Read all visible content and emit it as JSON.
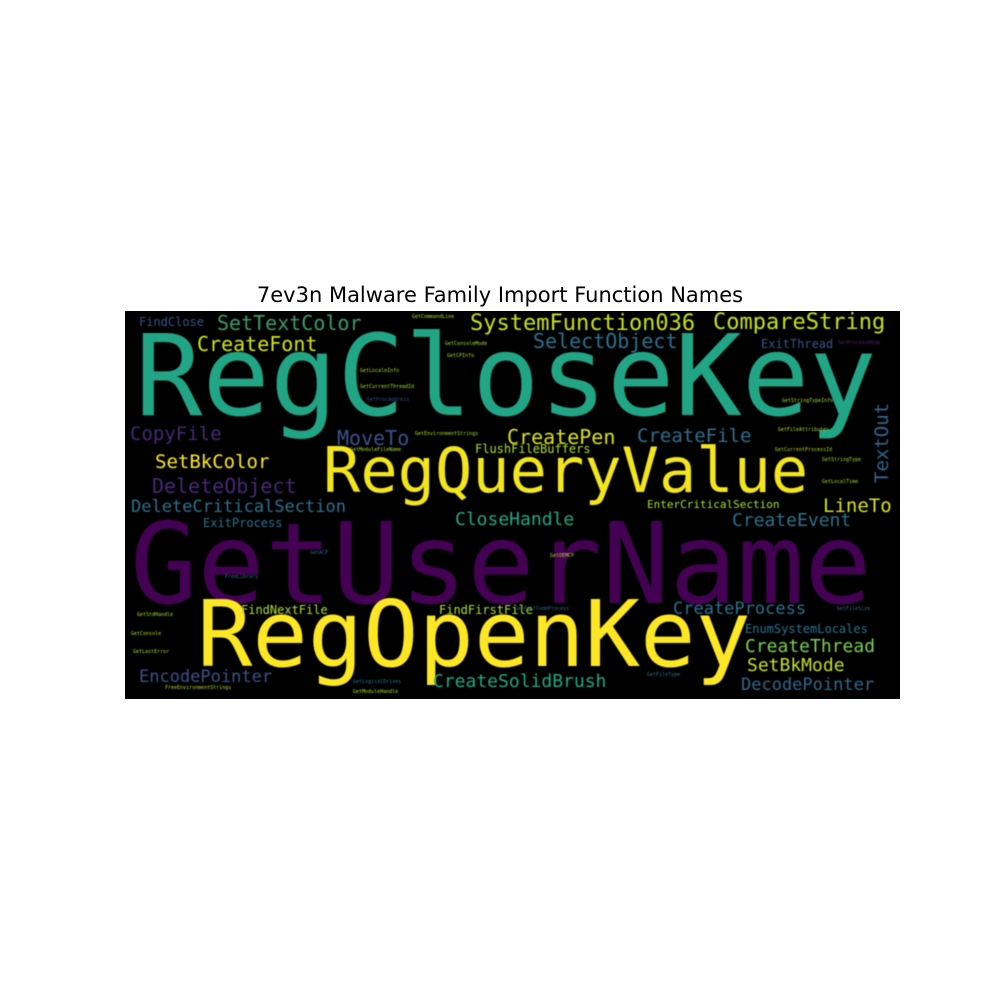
{
  "title": "7ev3n Malware Family Import Function Names",
  "palette": {
    "background": "#000000",
    "purple": "#440154",
    "indigo": "#472d7b",
    "blue": "#3b528b",
    "teal": "#2c728e",
    "cyan": "#21918c",
    "green": "#28ae80",
    "lime": "#5ec962",
    "yellowgreen": "#addc30",
    "yellow": "#fde725"
  },
  "words": [
    {
      "text": "GetUserName",
      "weight": 1.0,
      "color": "#440154"
    },
    {
      "text": "RegCloseKey",
      "weight": 0.9,
      "color": "#21a585"
    },
    {
      "text": "RegOpenKey",
      "weight": 0.8,
      "color": "#fde725"
    },
    {
      "text": "RegQueryValue",
      "weight": 0.62,
      "color": "#f2e51d"
    },
    {
      "text": "SystemFunction036",
      "weight": 0.25,
      "color": "#c8e020"
    },
    {
      "text": "CompareString",
      "weight": 0.24,
      "color": "#c8e020"
    },
    {
      "text": "SetTextColor",
      "weight": 0.23,
      "color": "#3e9a6a"
    },
    {
      "text": "CreateFont",
      "weight": 0.23,
      "color": "#d2e21b"
    },
    {
      "text": "SelectObject",
      "weight": 0.22,
      "color": "#2c728e"
    },
    {
      "text": "CopyFile",
      "weight": 0.22,
      "color": "#482878"
    },
    {
      "text": "MoveTo",
      "weight": 0.22,
      "color": "#3b528b"
    },
    {
      "text": "CreatePen",
      "weight": 0.22,
      "color": "#d8e219"
    },
    {
      "text": "CreateFile",
      "weight": 0.22,
      "color": "#2c728e"
    },
    {
      "text": "TextOut",
      "weight": 0.22,
      "color": "#31688e"
    },
    {
      "text": "SetBkColor",
      "weight": 0.22,
      "color": "#fde725"
    },
    {
      "text": "DeleteObject",
      "weight": 0.22,
      "color": "#482878"
    },
    {
      "text": "DeleteCriticalSection",
      "weight": 0.21,
      "color": "#2c728e"
    },
    {
      "text": "LineTo",
      "weight": 0.21,
      "color": "#d8e219"
    },
    {
      "text": "CloseHandle",
      "weight": 0.21,
      "color": "#22a884"
    },
    {
      "text": "CreateEvent",
      "weight": 0.21,
      "color": "#2c728e"
    },
    {
      "text": "CreateProcess",
      "weight": 0.2,
      "color": "#2c728e"
    },
    {
      "text": "CreateThread",
      "weight": 0.2,
      "color": "#7ad151"
    },
    {
      "text": "SetBkMode",
      "weight": 0.2,
      "color": "#c8e020"
    },
    {
      "text": "EncodePointer",
      "weight": 0.2,
      "color": "#3b528b"
    },
    {
      "text": "CreateSolidBrush",
      "weight": 0.2,
      "color": "#22a884"
    },
    {
      "text": "DecodePointer",
      "weight": 0.2,
      "color": "#31688e"
    },
    {
      "text": "FindClose",
      "weight": 0.1,
      "color": "#3b528b"
    },
    {
      "text": "ExitThread",
      "weight": 0.1,
      "color": "#3b528b"
    },
    {
      "text": "FlushFileBuffers",
      "weight": 0.1,
      "color": "#addc30"
    },
    {
      "text": "ExitProcess",
      "weight": 0.1,
      "color": "#2c728e"
    },
    {
      "text": "EnterCriticalSection",
      "weight": 0.1,
      "color": "#addc30"
    },
    {
      "text": "FindNextFile",
      "weight": 0.1,
      "color": "#addc30"
    },
    {
      "text": "FindFirstFile",
      "weight": 0.1,
      "color": "#addc30"
    },
    {
      "text": "EnumSystemLocales",
      "weight": 0.1,
      "color": "#2c728e"
    },
    {
      "text": "GetCommandLine",
      "weight": 0.04,
      "color": "#addc30"
    },
    {
      "text": "GetConsoleMode",
      "weight": 0.04,
      "color": "#addc30"
    },
    {
      "text": "GetCPInfo",
      "weight": 0.04,
      "color": "#addc30"
    },
    {
      "text": "GetLocaleInfo",
      "weight": 0.04,
      "color": "#addc30"
    },
    {
      "text": "GetCurrentThreadId",
      "weight": 0.04,
      "color": "#addc30"
    },
    {
      "text": "GetProcAddress",
      "weight": 0.04,
      "color": "#3b528b"
    },
    {
      "text": "GetStringTypeInfo",
      "weight": 0.04,
      "color": "#addc30"
    },
    {
      "text": "GetProcessHeap",
      "weight": 0.04,
      "color": "#482878"
    },
    {
      "text": "GetEnvironmentStrings",
      "weight": 0.04,
      "color": "#addc30"
    },
    {
      "text": "GetFileAttributes",
      "weight": 0.04,
      "color": "#addc30"
    },
    {
      "text": "GetModuleFileName",
      "weight": 0.04,
      "color": "#addc30"
    },
    {
      "text": "GetCurrentProcessId",
      "weight": 0.04,
      "color": "#addc30"
    },
    {
      "text": "GetStringType",
      "weight": 0.04,
      "color": "#addc30"
    },
    {
      "text": "GetLocalTime",
      "weight": 0.04,
      "color": "#addc30"
    },
    {
      "text": "FreeLibrary",
      "weight": 0.04,
      "color": "#2c728e"
    },
    {
      "text": "GetACP",
      "weight": 0.04,
      "color": "#2c728e"
    },
    {
      "text": "GetOEMCP",
      "weight": 0.04,
      "color": "#addc30"
    },
    {
      "text": "GetStdHandle",
      "weight": 0.04,
      "color": "#addc30"
    },
    {
      "text": "GetExitCodeProcess",
      "weight": 0.04,
      "color": "#2c728e"
    },
    {
      "text": "GetFileSize",
      "weight": 0.04,
      "color": "#2c728e"
    },
    {
      "text": "GetConsole",
      "weight": 0.04,
      "color": "#addc30"
    },
    {
      "text": "GetLastError",
      "weight": 0.04,
      "color": "#addc30"
    },
    {
      "text": "GetFileType",
      "weight": 0.04,
      "color": "#2c728e"
    },
    {
      "text": "GetLogicalDrives",
      "weight": 0.04,
      "color": "#2c728e"
    },
    {
      "text": "FreeEnvironmentStrings",
      "weight": 0.04,
      "color": "#addc30"
    },
    {
      "text": "GetModuleHandle",
      "weight": 0.04,
      "color": "#addc30"
    }
  ]
}
